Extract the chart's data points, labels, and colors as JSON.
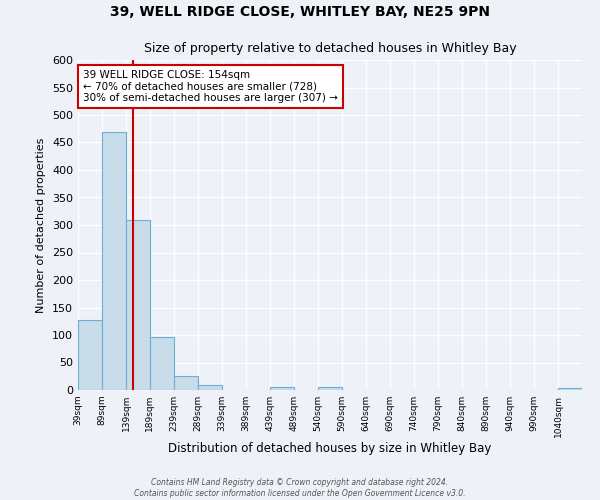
{
  "title": "39, WELL RIDGE CLOSE, WHITLEY BAY, NE25 9PN",
  "subtitle": "Size of property relative to detached houses in Whitley Bay",
  "xlabel": "Distribution of detached houses by size in Whitley Bay",
  "ylabel": "Number of detached properties",
  "bin_labels": [
    "39sqm",
    "89sqm",
    "139sqm",
    "189sqm",
    "239sqm",
    "289sqm",
    "339sqm",
    "389sqm",
    "439sqm",
    "489sqm",
    "540sqm",
    "590sqm",
    "640sqm",
    "690sqm",
    "740sqm",
    "790sqm",
    "840sqm",
    "890sqm",
    "940sqm",
    "990sqm",
    "1040sqm"
  ],
  "bar_heights": [
    128,
    470,
    310,
    96,
    25,
    10,
    0,
    0,
    5,
    0,
    5,
    0,
    0,
    0,
    0,
    0,
    0,
    0,
    0,
    0,
    3
  ],
  "bar_color": "#c9dcea",
  "bar_edge_color": "#6aafd6",
  "property_line_x": 154,
  "property_line_color": "#cc0000",
  "annotation_title": "39 WELL RIDGE CLOSE: 154sqm",
  "annotation_line1": "← 70% of detached houses are smaller (728)",
  "annotation_line2": "30% of semi-detached houses are larger (307) →",
  "annotation_box_edge": "#cc0000",
  "ylim": [
    0,
    600
  ],
  "yticks": [
    0,
    50,
    100,
    150,
    200,
    250,
    300,
    350,
    400,
    450,
    500,
    550,
    600
  ],
  "bin_width": 50,
  "footer1": "Contains HM Land Registry data © Crown copyright and database right 2024.",
  "footer2": "Contains public sector information licensed under the Open Government Licence v3.0.",
  "bg_color": "#eef2f8",
  "plot_bg_color": "#eef2f8"
}
